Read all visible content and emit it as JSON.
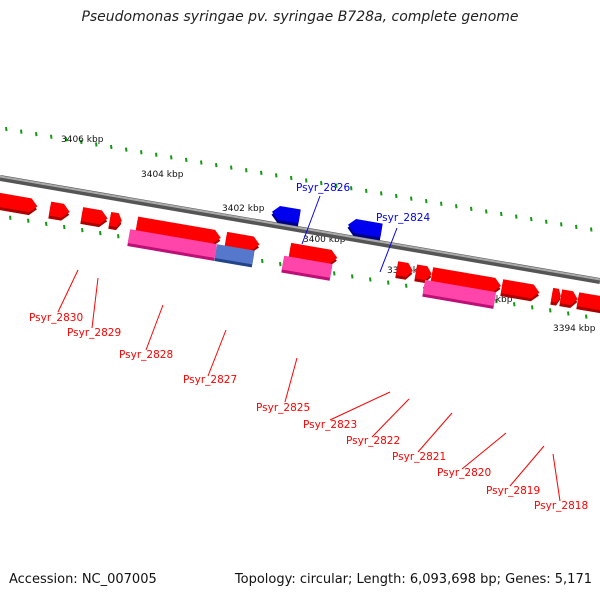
{
  "title": "Pseudomonas syringae pv. syringae B728a, complete genome",
  "footer": {
    "accession": "Accession: NC_007005",
    "topology": "Topology: circular; Length: 6,093,698 bp; Genes: 5,171"
  },
  "colors": {
    "backbone": "#888888",
    "plus_gene": "#ff0000",
    "minus_gene": "#0000ee",
    "cds_pink": "#ff44aa",
    "cds_blue": "#5577cc",
    "ticks": "#119911"
  },
  "scale_labels": [
    "3406 kbp",
    "3404 kbp",
    "3402 kbp",
    "3400 kbp",
    "3398 kbp",
    "3396 kbp",
    "3394 kbp"
  ],
  "gene_labels": [
    {
      "text": "Psyr_2830",
      "strand": "forward"
    },
    {
      "text": "Psyr_2829",
      "strand": "forward"
    },
    {
      "text": "Psyr_2828",
      "strand": "forward"
    },
    {
      "text": "Psyr_2827",
      "strand": "forward"
    },
    {
      "text": "Psyr_2826",
      "strand": "reverse"
    },
    {
      "text": "Psyr_2825",
      "strand": "forward"
    },
    {
      "text": "Psyr_2824",
      "strand": "reverse"
    },
    {
      "text": "Psyr_2823",
      "strand": "forward"
    },
    {
      "text": "Psyr_2822",
      "strand": "forward"
    },
    {
      "text": "Psyr_2821",
      "strand": "forward"
    },
    {
      "text": "Psyr_2820",
      "strand": "forward"
    },
    {
      "text": "Psyr_2819",
      "strand": "forward"
    },
    {
      "text": "Psyr_2818",
      "strand": "forward"
    }
  ]
}
